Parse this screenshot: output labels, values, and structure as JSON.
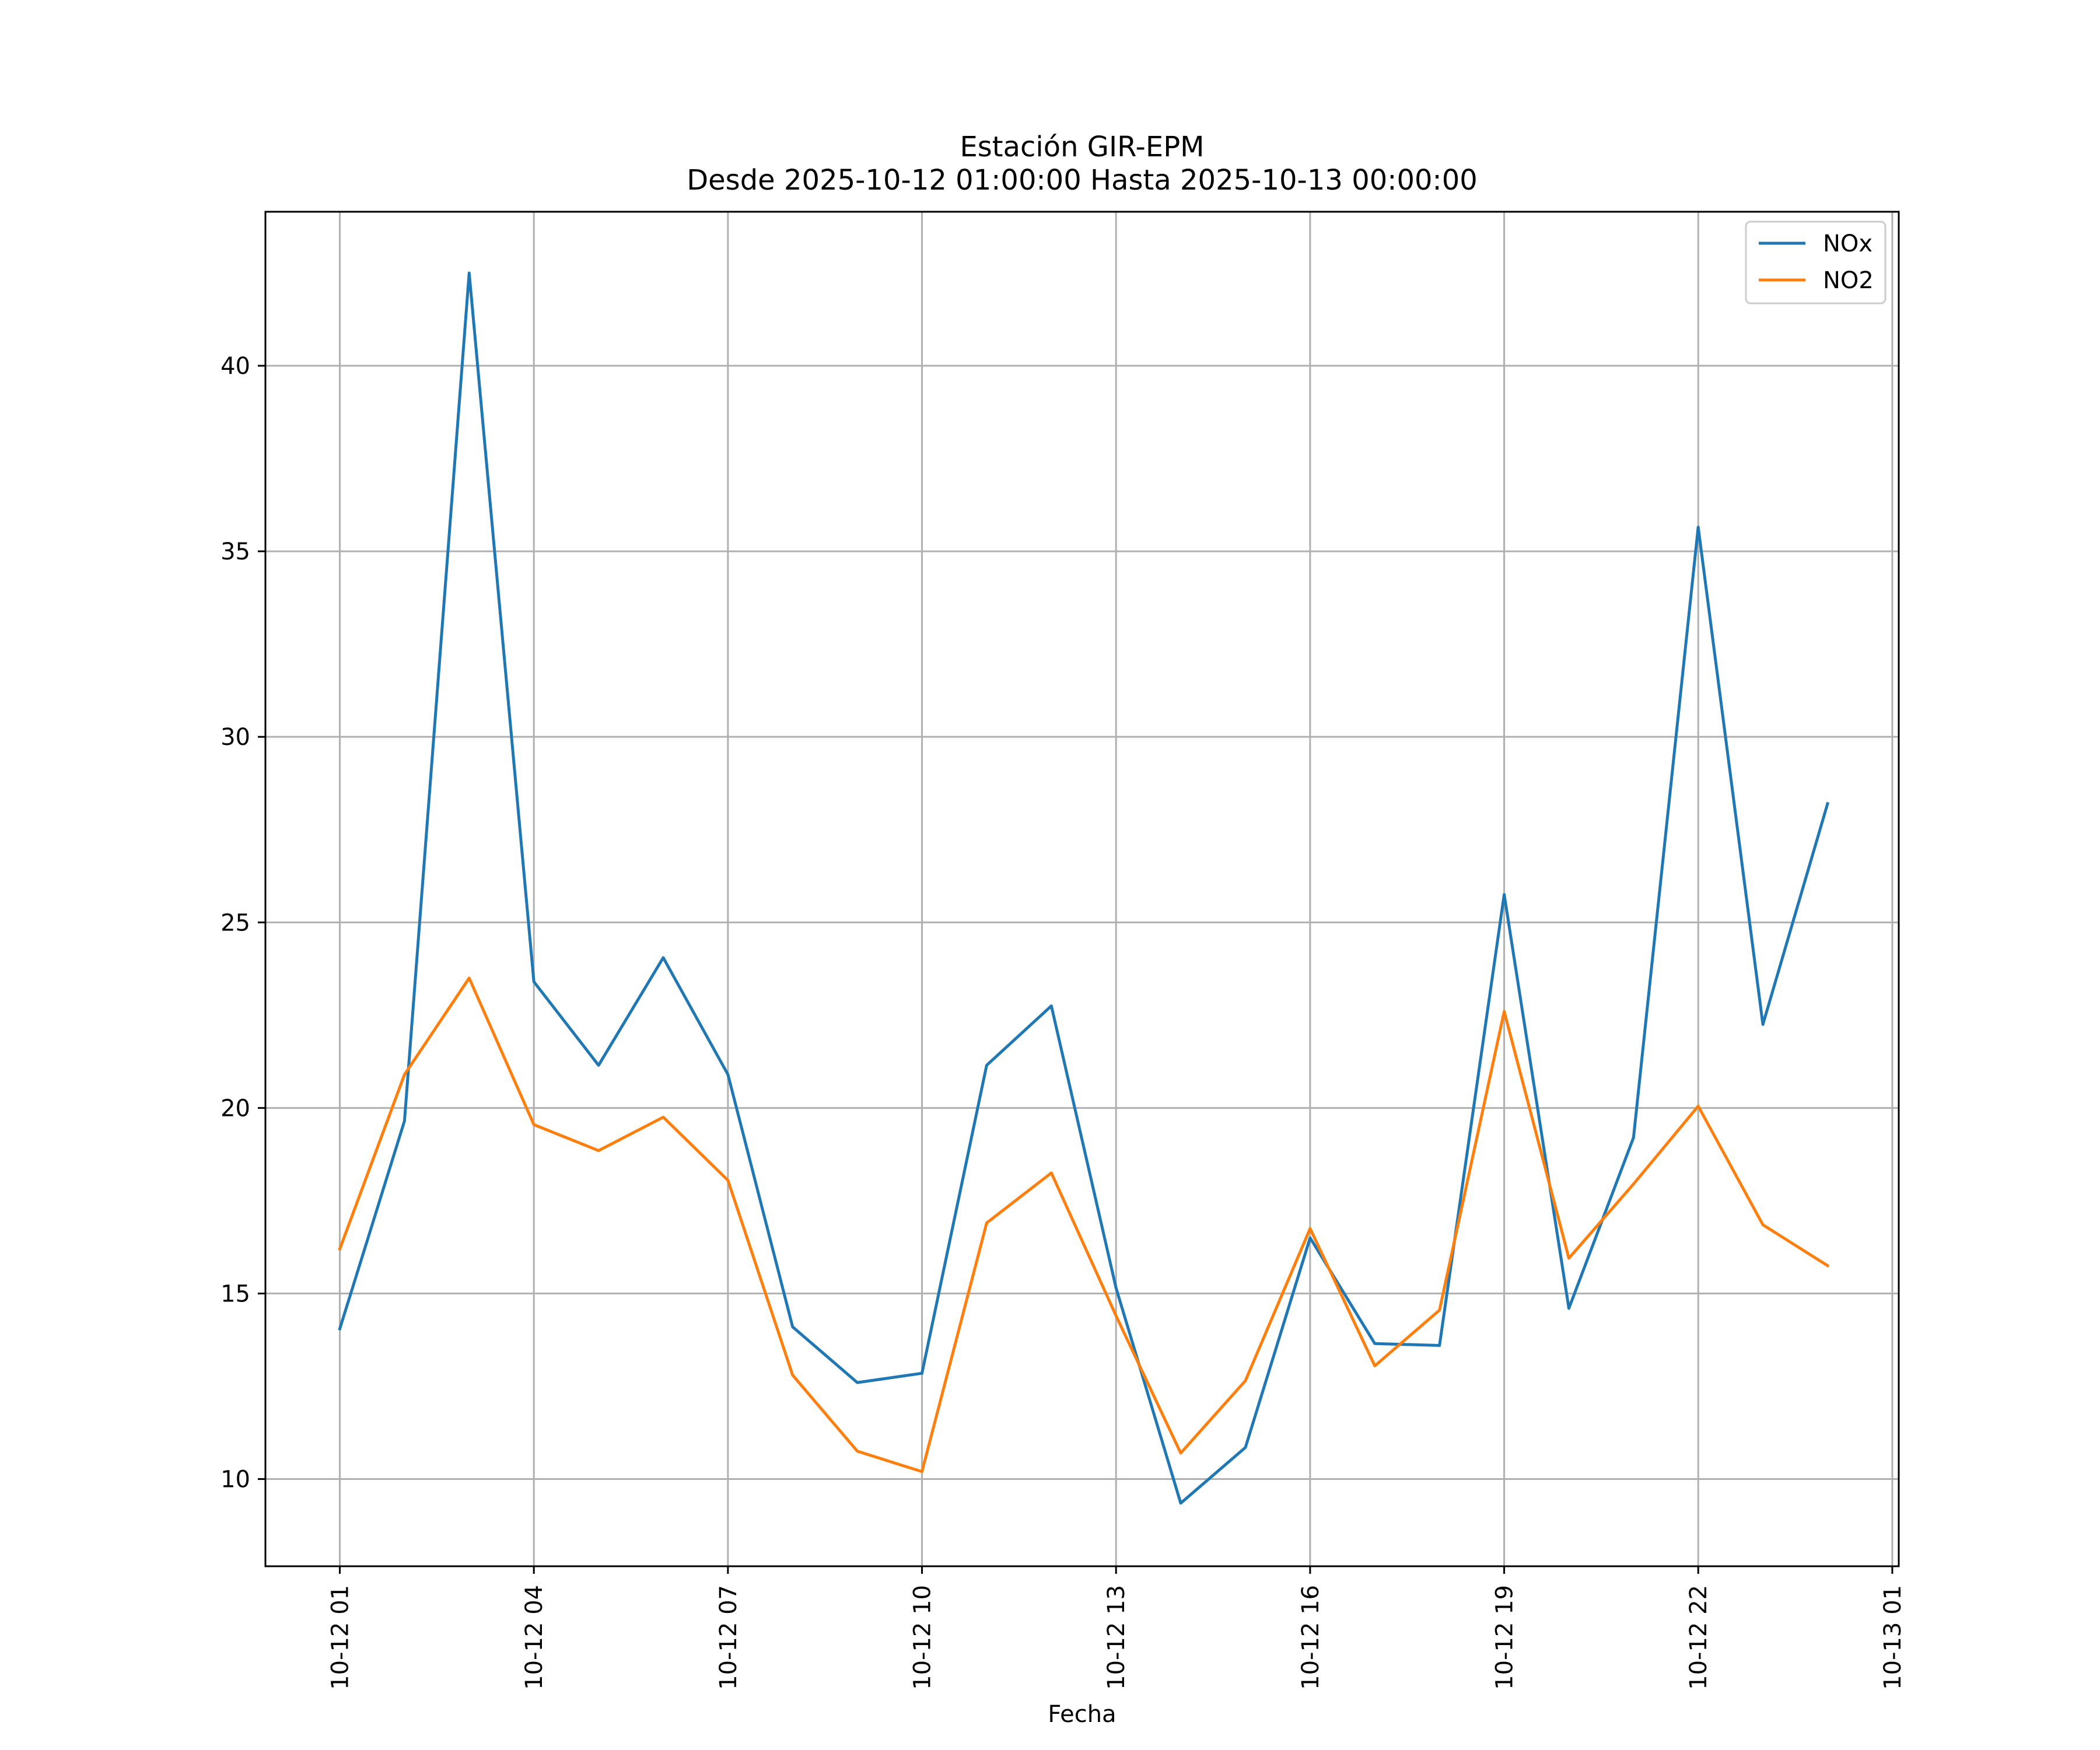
{
  "chart_data": {
    "type": "line",
    "title": "Estación GIR-EPM",
    "subtitle": "Desde 2025-10-12 01:00:00 Hasta 2025-10-13 00:00:00",
    "xlabel": "Fecha",
    "ylabel": "",
    "x": [
      1,
      2,
      3,
      4,
      5,
      6,
      7,
      8,
      9,
      10,
      11,
      12,
      13,
      14,
      15,
      16,
      17,
      18,
      19,
      20,
      21,
      22,
      23,
      24
    ],
    "xlim": [
      -0.15,
      25.1
    ],
    "ylim": [
      7.65,
      44.15
    ],
    "x_ticks": [
      {
        "value": 1,
        "label": "10-12 01"
      },
      {
        "value": 4,
        "label": "10-12 04"
      },
      {
        "value": 7,
        "label": "10-12 07"
      },
      {
        "value": 10,
        "label": "10-12 10"
      },
      {
        "value": 13,
        "label": "10-12 13"
      },
      {
        "value": 16,
        "label": "10-12 16"
      },
      {
        "value": 19,
        "label": "10-12 19"
      },
      {
        "value": 22,
        "label": "10-12 22"
      },
      {
        "value": 25,
        "label": "10-13 01"
      }
    ],
    "y_ticks": [
      10,
      15,
      20,
      25,
      30,
      35,
      40
    ],
    "grid": true,
    "legend_position": "top-right",
    "series": [
      {
        "name": "NOx",
        "color": "#1f77b4",
        "values": [
          14.05,
          19.65,
          42.5,
          23.4,
          21.15,
          24.05,
          20.9,
          14.1,
          12.6,
          12.85,
          21.15,
          22.75,
          15.15,
          9.35,
          10.85,
          16.5,
          13.65,
          13.6,
          25.75,
          14.6,
          19.2,
          35.65,
          22.25,
          28.2
        ]
      },
      {
        "name": "NO2",
        "color": "#ff7f0e",
        "values": [
          16.2,
          20.9,
          23.5,
          19.55,
          18.85,
          19.75,
          18.05,
          12.8,
          10.75,
          10.2,
          16.9,
          18.25,
          14.4,
          10.7,
          12.65,
          16.75,
          13.05,
          14.55,
          22.6,
          15.95,
          17.95,
          20.05,
          16.85,
          15.75
        ]
      }
    ]
  }
}
